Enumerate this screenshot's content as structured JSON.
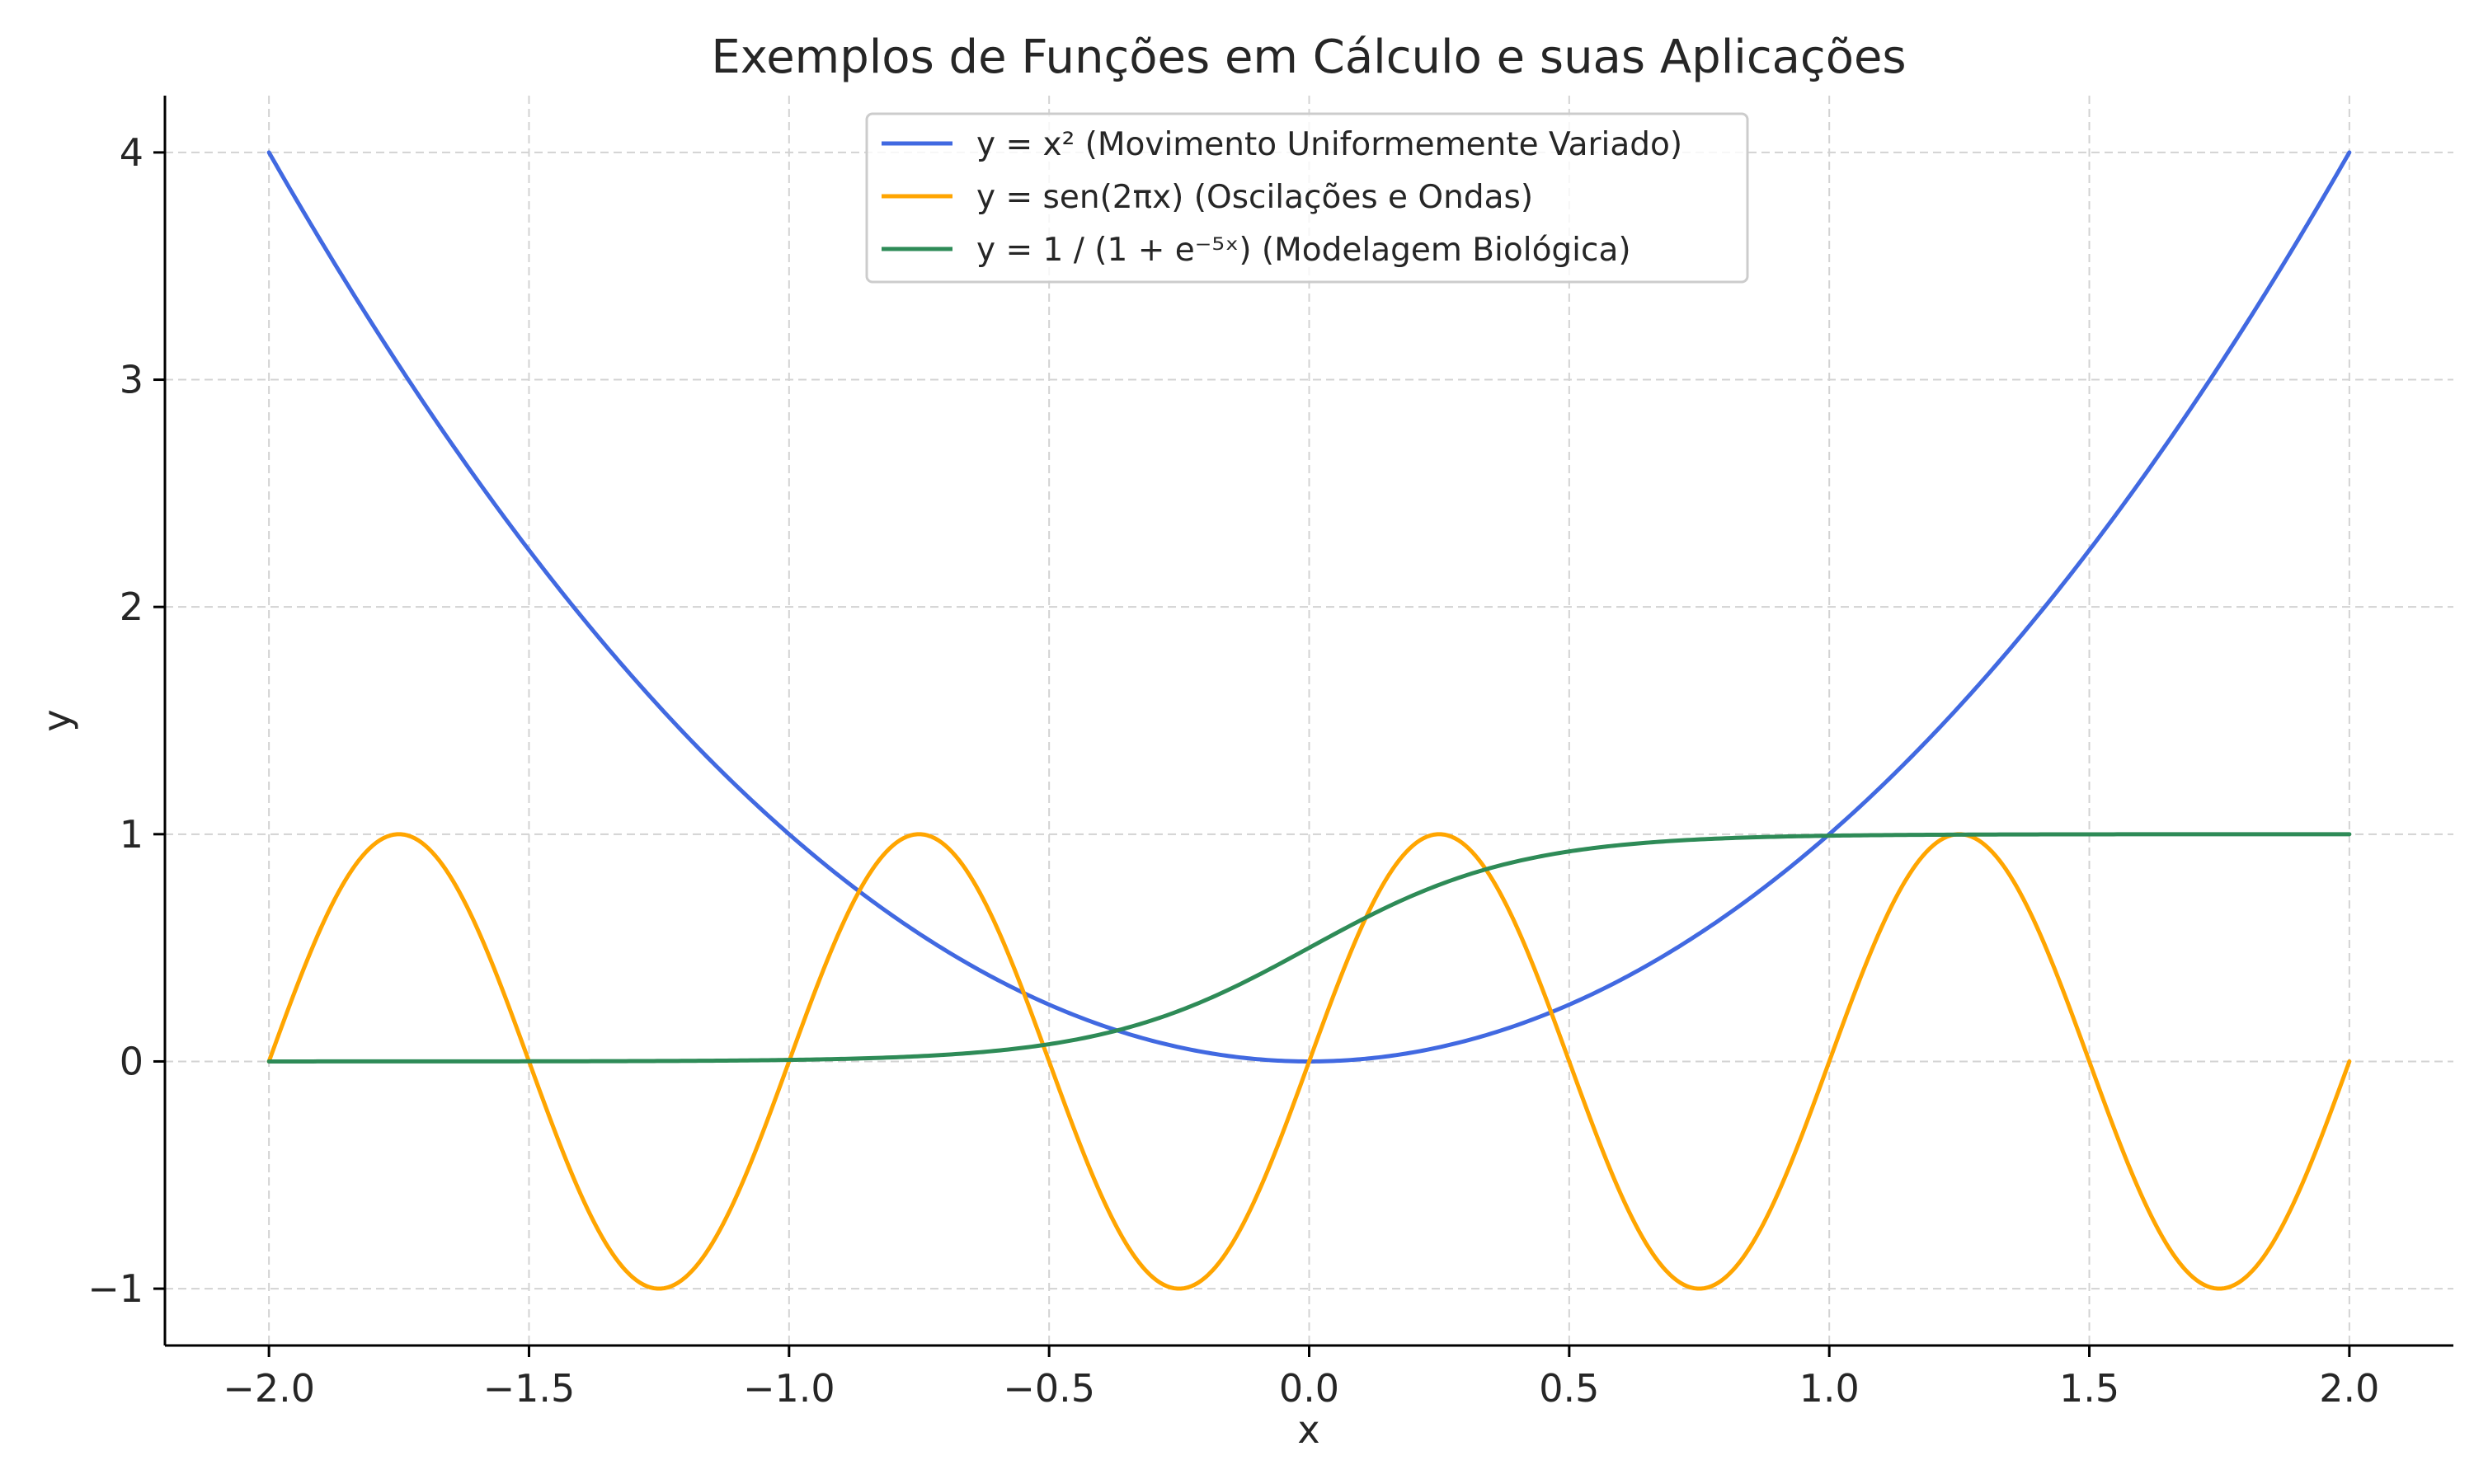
{
  "chart_data": {
    "type": "line",
    "title": "Exemplos de Funções em Cálculo e suas Aplicações",
    "xlabel": "x",
    "ylabel": "y",
    "xlim": [
      -2.2,
      2.2
    ],
    "ylim": [
      -1.25,
      4.25
    ],
    "grid": true,
    "legend_position": "top-center",
    "x_ticks": [
      {
        "value": -2.0,
        "label": "−2.0"
      },
      {
        "value": -1.5,
        "label": "−1.5"
      },
      {
        "value": -1.0,
        "label": "−1.0"
      },
      {
        "value": -0.5,
        "label": "−0.5"
      },
      {
        "value": 0.0,
        "label": "0.0"
      },
      {
        "value": 0.5,
        "label": "0.5"
      },
      {
        "value": 1.0,
        "label": "1.0"
      },
      {
        "value": 1.5,
        "label": "1.5"
      },
      {
        "value": 2.0,
        "label": "2.0"
      }
    ],
    "y_ticks": [
      {
        "value": -1,
        "label": "−1"
      },
      {
        "value": 0,
        "label": "0"
      },
      {
        "value": 1,
        "label": "1"
      },
      {
        "value": 2,
        "label": "2"
      },
      {
        "value": 3,
        "label": "3"
      },
      {
        "value": 4,
        "label": "4"
      }
    ],
    "x": [
      -2.0,
      -1.875,
      -1.75,
      -1.625,
      -1.5,
      -1.375,
      -1.25,
      -1.125,
      -1.0,
      -0.875,
      -0.75,
      -0.625,
      -0.5,
      -0.375,
      -0.25,
      -0.125,
      0.0,
      0.125,
      0.25,
      0.375,
      0.5,
      0.625,
      0.75,
      0.875,
      1.0,
      1.125,
      1.25,
      1.375,
      1.5,
      1.625,
      1.75,
      1.875,
      2.0
    ],
    "series": [
      {
        "name": "y = x² (Movimento Uniformemente Variado)",
        "color": "#4169e1",
        "values": [
          4.0,
          3.516,
          3.063,
          2.641,
          2.25,
          1.891,
          1.563,
          1.266,
          1.0,
          0.766,
          0.563,
          0.391,
          0.25,
          0.141,
          0.063,
          0.016,
          0.0,
          0.016,
          0.063,
          0.141,
          0.25,
          0.391,
          0.563,
          0.766,
          1.0,
          1.266,
          1.563,
          1.891,
          2.25,
          2.641,
          3.063,
          3.516,
          4.0
        ]
      },
      {
        "name": "y = sen(2πx) (Oscilações e Ondas)",
        "color": "#ffa500",
        "values": [
          0.0,
          0.707,
          1.0,
          0.707,
          0.0,
          -0.707,
          -1.0,
          -0.707,
          0.0,
          0.707,
          1.0,
          0.707,
          0.0,
          -0.707,
          -1.0,
          -0.707,
          0.0,
          0.707,
          1.0,
          0.707,
          0.0,
          -0.707,
          -1.0,
          -0.707,
          0.0,
          0.707,
          1.0,
          0.707,
          0.0,
          -0.707,
          -1.0,
          -0.707,
          0.0
        ]
      },
      {
        "name": "y = 1 / (1 + e⁻⁵ˣ) (Modelagem Biológica)",
        "color": "#2e8b57",
        "values": [
          0.0,
          0.0001,
          0.0002,
          0.0003,
          0.0006,
          0.001,
          0.0019,
          0.0036,
          0.0067,
          0.0124,
          0.023,
          0.042,
          0.076,
          0.133,
          0.223,
          0.349,
          0.5,
          0.651,
          0.777,
          0.867,
          0.924,
          0.958,
          0.977,
          0.988,
          0.993,
          0.996,
          0.998,
          0.999,
          0.999,
          1.0,
          1.0,
          1.0,
          1.0
        ]
      }
    ]
  }
}
